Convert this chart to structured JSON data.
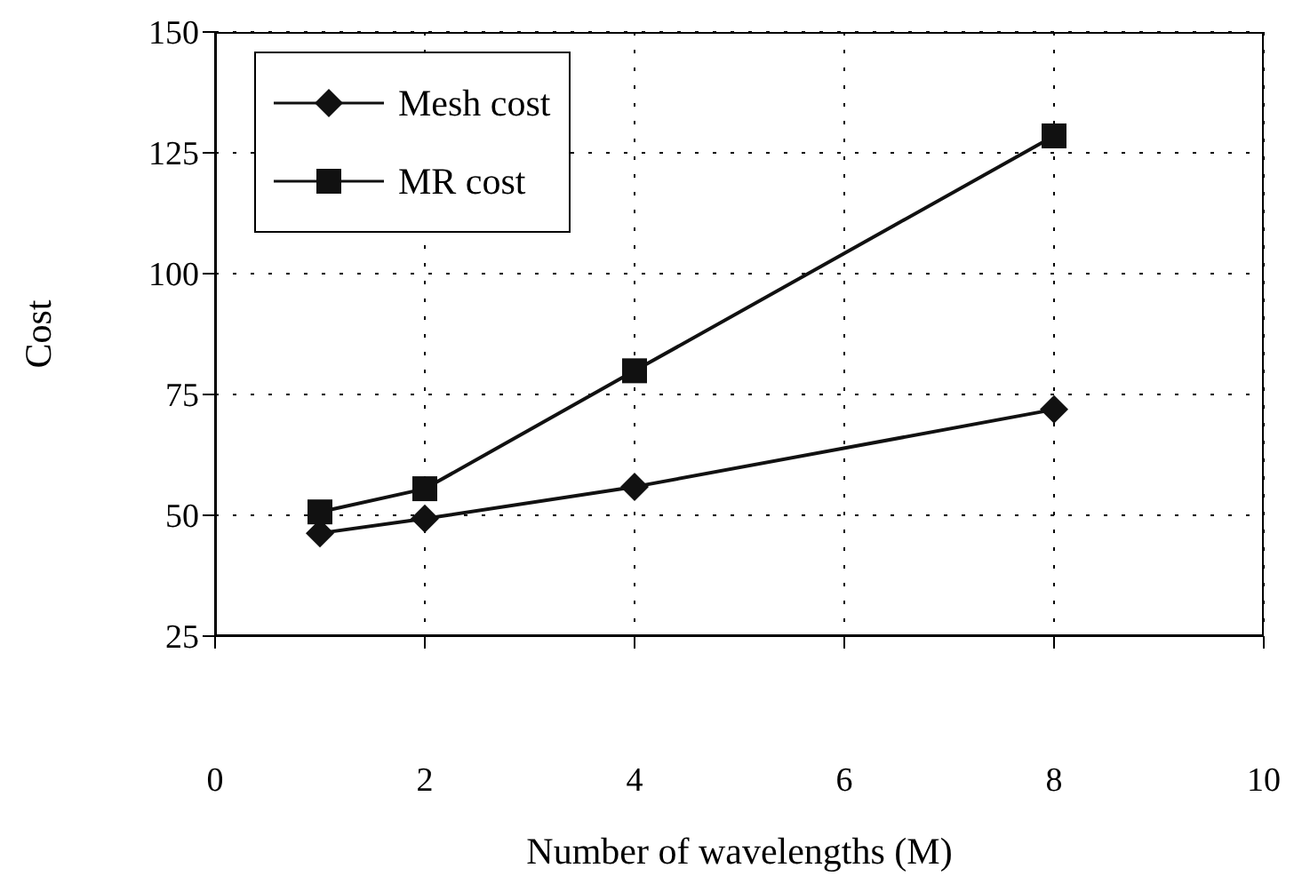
{
  "chart_data": {
    "type": "line",
    "xlabel": "Number of wavelengths (M)",
    "ylabel": "Cost",
    "x": [
      1,
      2,
      4,
      8
    ],
    "series": [
      {
        "name": "Mesh cost",
        "color": "#111111",
        "marker": "diamond",
        "values": [
          46.3,
          49.3,
          55.9,
          71.9
        ]
      },
      {
        "name": "MR cost",
        "color": "#111111",
        "marker": "square",
        "values": [
          50.7,
          55.5,
          79.9,
          128.5
        ]
      }
    ],
    "xlim": [
      0,
      10
    ],
    "xticks": [
      0,
      2,
      4,
      6,
      8,
      10
    ],
    "ylim": [
      25,
      150
    ],
    "yticks": [
      25,
      50,
      75,
      100,
      125,
      150
    ],
    "grid": true,
    "legend": "top left",
    "line_style": "solid"
  }
}
